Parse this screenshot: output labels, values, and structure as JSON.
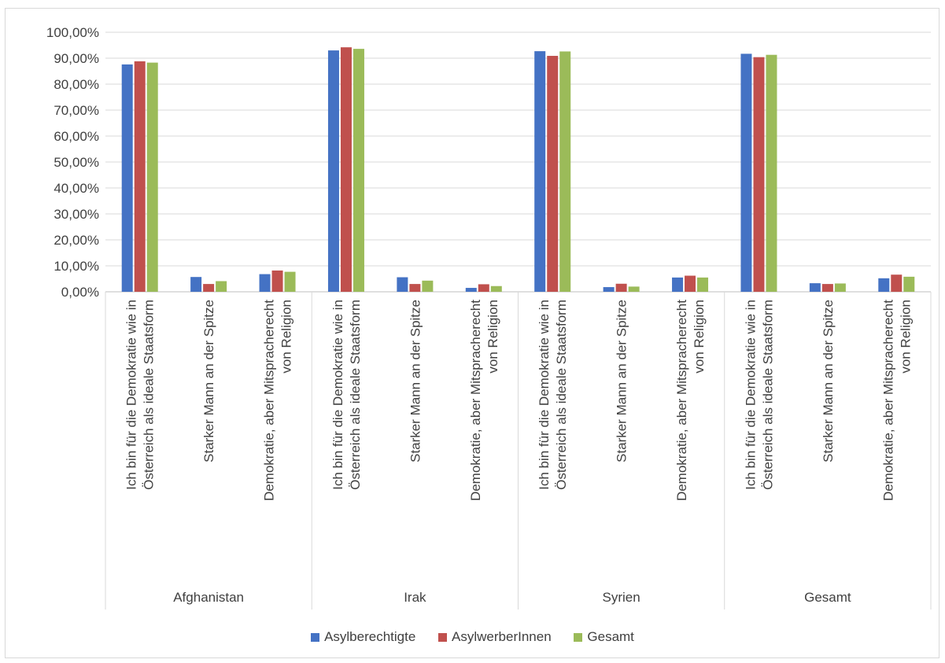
{
  "chart_data": {
    "type": "bar",
    "groups": [
      {
        "label": "Afghanistan",
        "categories": [
          "Ich bin für die Demokratie wie in Österreich als ideale Staatsform",
          "Starker Mann an der Spitze",
          "Demokratie, aber Mitspracherecht von Religion"
        ]
      },
      {
        "label": "Irak",
        "categories": [
          "Ich bin für die Demokratie wie in Österreich als ideale Staatsform",
          "Starker Mann an der Spitze",
          "Demokratie, aber Mitspracherecht von Religion"
        ]
      },
      {
        "label": "Syrien",
        "categories": [
          "Ich bin für die Demokratie wie in Österreich als ideale Staatsform",
          "Starker Mann an der Spitze",
          "Demokratie, aber Mitspracherecht von Religion"
        ]
      },
      {
        "label": "Gesamt",
        "categories": [
          "Ich bin für die Demokratie wie in Österreich als ideale Staatsform",
          "Starker Mann an der Spitze",
          "Demokratie, aber Mitspracherecht von Religion"
        ]
      }
    ],
    "category_lines": [
      [
        "Ich bin für die Demokratie wie in",
        "Österreich als ideale Staatsform"
      ],
      [
        "Starker Mann an der Spitze"
      ],
      [
        "Demokratie, aber Mitspracherecht",
        "von Religion"
      ]
    ],
    "series": [
      {
        "name": "Asylberechtigte",
        "color": "#4472c4",
        "values": [
          87.6,
          5.7,
          6.8,
          93.0,
          5.6,
          1.5,
          92.7,
          1.8,
          5.5,
          91.7,
          3.3,
          5.2
        ]
      },
      {
        "name": "AsylwerberInnen",
        "color": "#c0504d",
        "values": [
          88.8,
          3.0,
          8.2,
          94.2,
          3.0,
          2.9,
          90.9,
          3.1,
          6.2,
          90.4,
          3.0,
          6.6
        ]
      },
      {
        "name": "Gesamt",
        "color": "#9bbb59",
        "values": [
          88.3,
          4.1,
          7.7,
          93.6,
          4.3,
          2.2,
          92.6,
          2.0,
          5.5,
          91.3,
          3.2,
          5.8
        ]
      }
    ],
    "yticks": [
      "0,00%",
      "10,00%",
      "20,00%",
      "30,00%",
      "40,00%",
      "50,00%",
      "60,00%",
      "70,00%",
      "80,00%",
      "90,00%",
      "100,00%"
    ],
    "ylim": [
      0,
      100
    ],
    "grid": true,
    "legend_position": "bottom"
  }
}
